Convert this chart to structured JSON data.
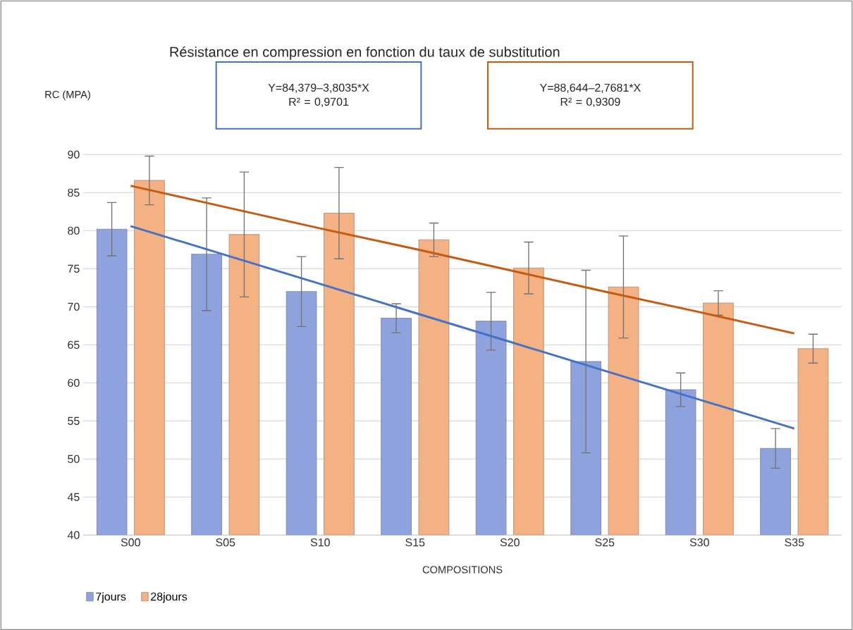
{
  "chart_data": {
    "type": "bar",
    "title": "Résistance en compression en fonction du taux de substitution",
    "xlabel": "COMPOSITIONS",
    "ylabel": "RC (MPA)",
    "categories": [
      "S00",
      "S05",
      "S10",
      "S15",
      "S20",
      "S25",
      "S30",
      "S35"
    ],
    "series": [
      {
        "name": "7jours",
        "color": "#8ea3dd",
        "values": [
          80.2,
          76.9,
          72.0,
          68.5,
          68.1,
          62.8,
          59.1,
          51.4
        ],
        "errors": [
          3.5,
          7.4,
          4.6,
          1.9,
          3.8,
          12.0,
          2.2,
          2.6
        ]
      },
      {
        "name": "28jours",
        "color": "#f4b183",
        "values": [
          86.6,
          79.5,
          82.3,
          78.8,
          75.1,
          72.6,
          70.5,
          64.5
        ],
        "errors": [
          3.2,
          8.2,
          6.0,
          2.2,
          3.4,
          6.7,
          1.6,
          1.9
        ]
      },
      {
        "type": "line",
        "color": "#4472c4",
        "values": [
          80.6,
          76.8,
          73.0,
          69.2,
          65.4,
          61.6,
          57.8,
          54.0
        ]
      },
      {
        "type": "line",
        "color": "#c55a11",
        "values": [
          85.9,
          83.1,
          80.3,
          77.6,
          74.8,
          72.0,
          69.3,
          66.5
        ]
      }
    ],
    "annotations": [
      "Y=84,379–3,8035*X R² = 0,9701",
      "Y=88,644–2,7681*X R² = 0,9309"
    ],
    "ylim": [
      40,
      90
    ],
    "yticks": [
      40,
      45,
      50,
      55,
      60,
      65,
      70,
      75,
      80,
      85,
      90
    ],
    "grid": "y",
    "legend": "bottom left"
  }
}
